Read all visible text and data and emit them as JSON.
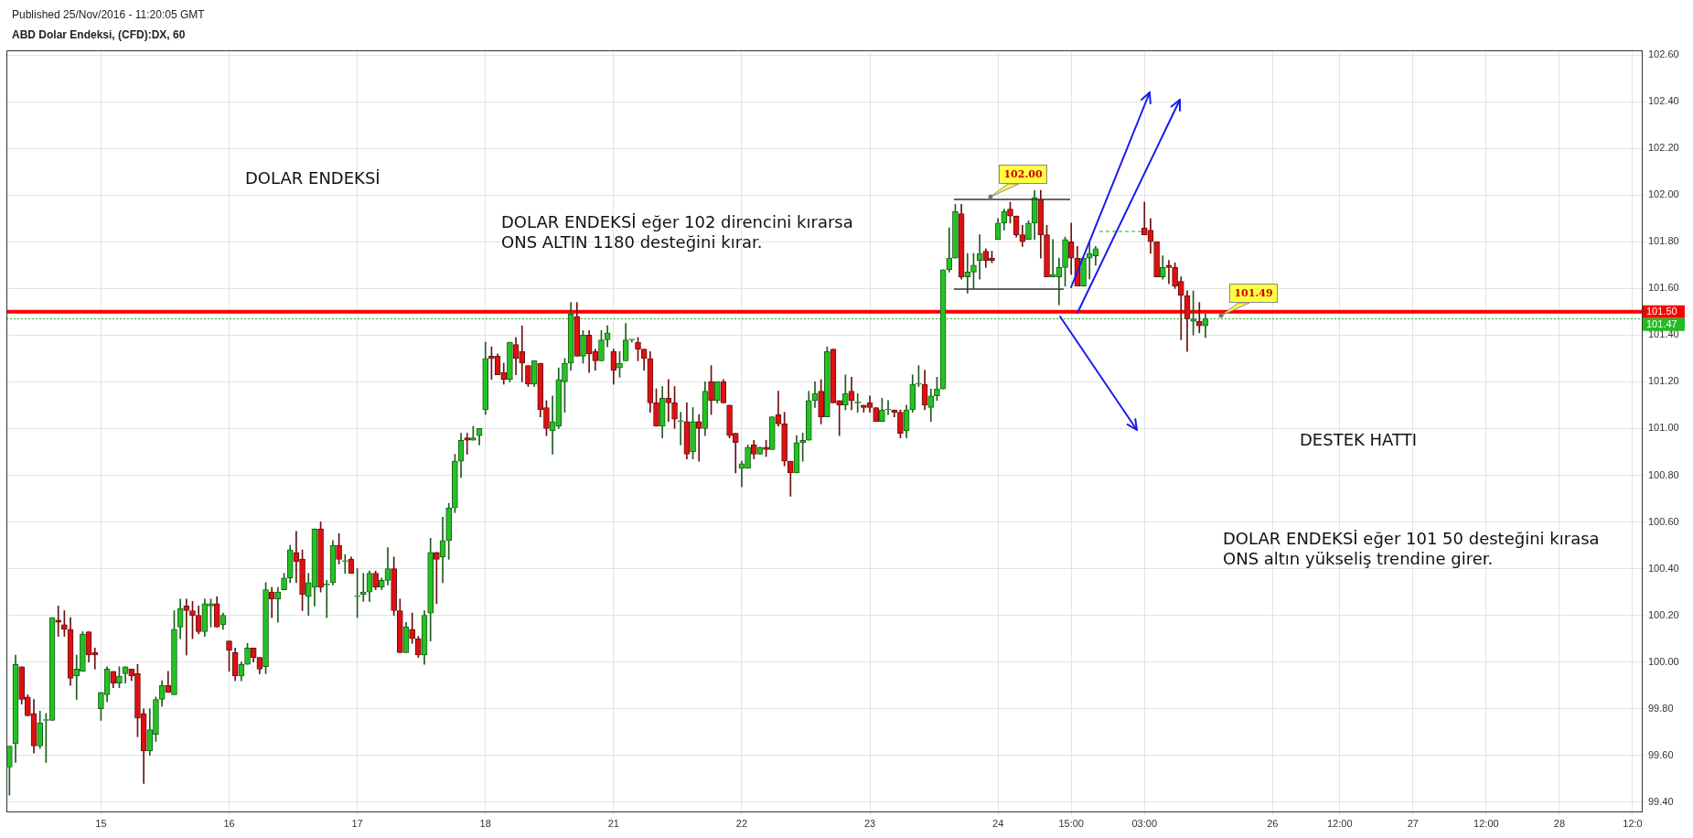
{
  "chart_data": {
    "type": "candlestick",
    "title": "ABD Dolar Endeksi, (CFD):DX, 60",
    "subtitle": "Published 25/Nov/2016 - 11:20:05 GMT",
    "categories": [
      null,
      null,
      null,
      null,
      null,
      null,
      null,
      null,
      null,
      null,
      null,
      null,
      null,
      null,
      null,
      "15",
      null,
      null,
      null,
      null,
      null,
      null,
      null,
      null,
      null,
      null,
      null,
      null,
      null,
      null,
      null,
      null,
      null,
      null,
      null,
      null,
      "16",
      null,
      null,
      null,
      null,
      null,
      null,
      null,
      null,
      null,
      null,
      null,
      null,
      null,
      null,
      null,
      null,
      null,
      null,
      null,
      null,
      "17",
      null,
      null,
      null,
      null,
      null,
      null,
      null,
      null,
      null,
      null,
      null,
      null,
      null,
      null,
      null,
      null,
      null,
      null,
      null,
      null,
      "18",
      null,
      null,
      null,
      null,
      null,
      null,
      null,
      null,
      null,
      null,
      null,
      null,
      null,
      null,
      null,
      null,
      null,
      null,
      null,
      null,
      "21",
      null,
      null,
      null,
      null,
      null,
      null,
      null,
      null,
      null,
      null,
      null,
      null,
      null,
      null,
      null,
      null,
      null,
      null,
      null,
      null,
      "22",
      null,
      null,
      null,
      null,
      null,
      null,
      null,
      null,
      null,
      null,
      null,
      null,
      null,
      null,
      null,
      null,
      null,
      null,
      null,
      null,
      "23",
      null,
      null,
      null,
      null,
      null,
      null,
      null,
      null,
      null,
      null,
      null,
      null,
      null,
      null,
      null,
      null,
      null,
      null,
      null,
      null,
      "24",
      null,
      null,
      null,
      null,
      null,
      null,
      null,
      null,
      null,
      null,
      null,
      "15:00",
      null,
      null,
      null,
      null,
      null,
      null,
      null,
      null,
      null,
      null,
      null,
      "03:00",
      null,
      null,
      null,
      null,
      null,
      null,
      null,
      null,
      null,
      null,
      null,
      null,
      null,
      null,
      null,
      null,
      null,
      null,
      null,
      null,
      "26",
      null,
      null,
      null,
      null,
      null,
      null,
      null,
      null,
      null,
      null,
      "12:00",
      null,
      null,
      null,
      null,
      null,
      null,
      null,
      null,
      null,
      null,
      null,
      "27",
      null,
      null,
      null,
      null,
      null,
      null,
      null,
      null,
      null,
      null,
      null,
      "12:00",
      null,
      null,
      null,
      null,
      null,
      null,
      null,
      null,
      null,
      null,
      null,
      "28",
      null,
      null,
      null,
      null,
      null,
      null,
      null,
      null,
      null,
      null,
      null,
      "12:0",
      null
    ],
    "ohlc": [
      [
        99.55,
        99.64,
        99.43,
        99.64
      ],
      [
        99.65,
        100.03,
        99.57,
        99.99
      ],
      [
        99.98,
        99.98,
        99.82,
        99.84
      ],
      [
        99.85,
        99.86,
        99.77,
        99.77
      ],
      [
        99.78,
        99.84,
        99.61,
        99.64
      ],
      [
        99.64,
        99.79,
        99.63,
        99.74
      ],
      [
        99.75,
        99.78,
        99.57,
        99.75
      ],
      [
        99.75,
        100.19,
        99.75,
        100.19
      ],
      [
        100.18,
        100.24,
        100.11,
        100.17
      ],
      [
        100.16,
        100.22,
        100.11,
        100.14
      ],
      [
        100.14,
        100.19,
        99.9,
        99.93
      ],
      [
        99.94,
        100.03,
        99.84,
        99.97
      ],
      [
        99.96,
        100.13,
        99.96,
        100.12
      ],
      [
        100.13,
        100.13,
        100.0,
        100.03
      ],
      [
        100.04,
        100.06,
        99.97,
        100.03
      ],
      [
        99.8,
        99.87,
        99.75,
        99.87
      ],
      [
        99.86,
        99.98,
        99.83,
        99.97
      ],
      [
        99.96,
        99.96,
        99.89,
        99.91
      ],
      [
        99.91,
        99.98,
        99.89,
        99.94
      ],
      [
        99.95,
        99.98,
        99.91,
        99.98
      ],
      [
        99.97,
        99.97,
        99.92,
        99.94
      ],
      [
        99.95,
        99.99,
        99.68,
        99.76
      ],
      [
        99.78,
        99.8,
        99.48,
        99.62
      ],
      [
        99.62,
        99.8,
        99.6,
        99.71
      ],
      [
        99.69,
        99.85,
        99.66,
        99.84
      ],
      [
        99.84,
        99.92,
        99.81,
        99.9
      ],
      [
        99.9,
        99.96,
        99.87,
        99.87
      ],
      [
        99.86,
        100.22,
        99.86,
        100.14
      ],
      [
        100.15,
        100.27,
        100.1,
        100.23
      ],
      [
        100.24,
        100.27,
        100.03,
        100.22
      ],
      [
        100.22,
        100.26,
        100.1,
        100.2
      ],
      [
        100.2,
        100.24,
        100.12,
        100.13
      ],
      [
        100.13,
        100.27,
        100.11,
        100.25
      ],
      [
        100.24,
        100.27,
        100.15,
        100.25
      ],
      [
        100.25,
        100.28,
        100.15,
        100.15
      ],
      [
        100.16,
        100.21,
        100.14,
        100.2
      ],
      [
        100.09,
        100.09,
        99.96,
        100.05
      ],
      [
        100.04,
        100.06,
        99.92,
        99.94
      ],
      [
        99.94,
        100.0,
        99.92,
        99.99
      ],
      [
        99.99,
        100.08,
        99.99,
        100.06
      ],
      [
        100.06,
        100.06,
        100.0,
        100.02
      ],
      [
        100.02,
        100.02,
        99.95,
        99.97
      ],
      [
        99.98,
        100.34,
        99.95,
        100.31
      ],
      [
        100.3,
        100.32,
        100.19,
        100.27
      ],
      [
        100.27,
        100.32,
        100.17,
        100.3
      ],
      [
        100.31,
        100.38,
        100.31,
        100.36
      ],
      [
        100.36,
        100.5,
        100.34,
        100.48
      ],
      [
        100.47,
        100.56,
        100.34,
        100.43
      ],
      [
        100.44,
        100.48,
        100.22,
        100.29
      ],
      [
        100.28,
        100.38,
        100.2,
        100.34
      ],
      [
        100.32,
        100.57,
        100.24,
        100.57
      ],
      [
        100.57,
        100.6,
        100.3,
        100.32
      ],
      [
        100.33,
        100.35,
        100.19,
        100.33
      ],
      [
        100.34,
        100.52,
        100.33,
        100.5
      ],
      [
        100.5,
        100.55,
        100.42,
        100.44
      ],
      [
        100.43,
        100.46,
        100.38,
        100.43
      ],
      [
        100.44,
        100.45,
        100.38,
        100.38
      ],
      [
        100.28,
        100.4,
        100.19,
        100.28
      ],
      [
        100.29,
        100.38,
        100.26,
        100.3
      ],
      [
        100.3,
        100.39,
        100.26,
        100.38
      ],
      [
        100.38,
        100.39,
        100.31,
        100.32
      ],
      [
        100.32,
        100.36,
        100.31,
        100.35
      ],
      [
        100.35,
        100.49,
        100.33,
        100.4
      ],
      [
        100.4,
        100.45,
        100.2,
        100.22
      ],
      [
        100.22,
        100.27,
        100.04,
        100.04
      ],
      [
        100.04,
        100.17,
        100.04,
        100.15
      ],
      [
        100.14,
        100.21,
        100.08,
        100.1
      ],
      [
        100.1,
        100.11,
        100.02,
        100.03
      ],
      [
        100.03,
        100.22,
        99.99,
        100.2
      ],
      [
        100.21,
        100.53,
        100.09,
        100.47
      ],
      [
        100.47,
        100.47,
        100.25,
        100.44
      ],
      [
        100.45,
        100.62,
        100.34,
        100.52
      ],
      [
        100.52,
        100.68,
        100.44,
        100.66
      ],
      [
        100.66,
        100.89,
        100.64,
        100.86
      ],
      [
        100.86,
        100.98,
        100.79,
        100.95
      ],
      [
        100.96,
        100.98,
        100.89,
        100.95
      ],
      [
        100.95,
        101.01,
        100.95,
        100.96
      ],
      [
        100.97,
        101.0,
        100.93,
        101.0
      ],
      [
        101.08,
        101.37,
        101.06,
        101.3
      ],
      [
        101.31,
        101.35,
        101.21,
        101.3
      ],
      [
        101.31,
        101.32,
        101.23,
        101.23
      ],
      [
        101.24,
        101.28,
        101.19,
        101.21
      ],
      [
        101.21,
        101.37,
        101.2,
        101.37
      ],
      [
        101.36,
        101.39,
        101.23,
        101.3
      ],
      [
        101.33,
        101.44,
        101.2,
        101.28
      ],
      [
        101.27,
        101.27,
        101.18,
        101.19
      ],
      [
        101.19,
        101.29,
        101.18,
        101.29
      ],
      [
        101.28,
        101.28,
        101.05,
        101.08
      ],
      [
        101.09,
        101.12,
        100.97,
        101.0
      ],
      [
        100.99,
        101.14,
        100.89,
        101.03
      ],
      [
        101.01,
        101.26,
        101.0,
        101.21
      ],
      [
        101.2,
        101.3,
        101.07,
        101.28
      ],
      [
        101.28,
        101.54,
        101.25,
        101.49
      ],
      [
        101.48,
        101.54,
        101.31,
        101.31
      ],
      [
        101.31,
        101.42,
        101.28,
        101.4
      ],
      [
        101.4,
        101.42,
        101.24,
        101.32
      ],
      [
        101.33,
        101.34,
        101.25,
        101.29
      ],
      [
        101.29,
        101.42,
        101.29,
        101.38
      ],
      [
        101.38,
        101.44,
        101.35,
        101.41
      ],
      [
        101.33,
        101.34,
        101.19,
        101.25
      ],
      [
        101.26,
        101.33,
        101.22,
        101.28
      ],
      [
        101.29,
        101.45,
        101.29,
        101.38
      ],
      [
        101.38,
        101.38,
        101.37,
        101.38
      ],
      [
        101.37,
        101.39,
        101.29,
        101.34
      ],
      [
        101.34,
        101.34,
        101.25,
        101.3
      ],
      [
        101.3,
        101.33,
        101.07,
        101.11
      ],
      [
        101.11,
        101.17,
        101.01,
        101.01
      ],
      [
        101.01,
        101.18,
        100.96,
        101.13
      ],
      [
        101.13,
        101.21,
        101.03,
        101.11
      ],
      [
        101.11,
        101.18,
        101.0,
        101.04
      ],
      [
        101.03,
        101.07,
        100.93,
        101.03
      ],
      [
        101.03,
        101.11,
        100.87,
        100.89
      ],
      [
        100.9,
        101.09,
        100.87,
        101.03
      ],
      [
        101.03,
        101.06,
        100.86,
        101.0
      ],
      [
        101.0,
        101.2,
        100.97,
        101.16
      ],
      [
        101.2,
        101.27,
        101.06,
        101.12
      ],
      [
        101.12,
        101.2,
        101.11,
        101.2
      ],
      [
        101.2,
        101.21,
        101.11,
        101.11
      ],
      [
        101.1,
        101.1,
        100.96,
        100.97
      ],
      [
        100.98,
        100.98,
        100.81,
        100.94
      ],
      [
        100.83,
        100.86,
        100.75,
        100.85
      ],
      [
        100.83,
        100.93,
        100.83,
        100.92
      ],
      [
        100.93,
        100.95,
        100.87,
        100.89
      ],
      [
        100.89,
        100.92,
        100.89,
        100.92
      ],
      [
        100.92,
        100.95,
        100.88,
        100.91
      ],
      [
        100.91,
        101.05,
        100.91,
        101.05
      ],
      [
        101.06,
        101.16,
        101.01,
        101.02
      ],
      [
        101.02,
        101.07,
        100.84,
        100.86
      ],
      [
        100.86,
        100.86,
        100.71,
        100.81
      ],
      [
        100.81,
        100.97,
        100.81,
        100.94
      ],
      [
        100.94,
        100.98,
        100.86,
        100.95
      ],
      [
        100.95,
        101.16,
        100.95,
        101.12
      ],
      [
        101.12,
        101.2,
        101.09,
        101.15
      ],
      [
        101.16,
        101.21,
        101.02,
        101.05
      ],
      [
        101.05,
        101.35,
        101.05,
        101.33
      ],
      [
        101.34,
        101.34,
        101.11,
        101.11
      ],
      [
        101.12,
        101.12,
        100.97,
        101.1
      ],
      [
        101.1,
        101.23,
        101.08,
        101.15
      ],
      [
        101.16,
        101.22,
        101.08,
        101.12
      ],
      [
        101.11,
        101.15,
        101.07,
        101.11
      ],
      [
        101.1,
        101.1,
        101.07,
        101.09
      ],
      [
        101.11,
        101.14,
        101.07,
        101.09
      ],
      [
        101.09,
        101.09,
        101.03,
        101.03
      ],
      [
        101.03,
        101.13,
        101.03,
        101.08
      ],
      [
        101.08,
        101.12,
        101.06,
        101.08
      ],
      [
        101.08,
        101.08,
        101.05,
        101.07
      ],
      [
        101.07,
        101.08,
        100.96,
        100.98
      ],
      [
        100.99,
        101.1,
        100.96,
        101.08
      ],
      [
        101.08,
        101.23,
        101.07,
        101.19
      ],
      [
        101.19,
        101.27,
        101.18,
        101.19
      ],
      [
        101.19,
        101.25,
        101.08,
        101.1
      ],
      [
        101.09,
        101.17,
        101.03,
        101.14
      ],
      [
        101.14,
        101.22,
        101.12,
        101.17
      ],
      [
        101.17,
        101.68,
        101.17,
        101.68
      ],
      [
        101.68,
        101.86,
        101.67,
        101.73
      ],
      [
        101.73,
        101.96,
        101.73,
        101.93
      ],
      [
        101.92,
        101.96,
        101.64,
        101.65
      ],
      [
        101.65,
        101.75,
        101.58,
        101.67
      ],
      [
        101.67,
        101.75,
        101.6,
        101.7
      ],
      [
        101.72,
        101.83,
        101.64,
        101.75
      ],
      [
        101.76,
        101.77,
        101.69,
        101.72
      ],
      [
        101.73,
        101.76,
        101.71,
        101.72
      ],
      [
        101.81,
        101.9,
        101.81,
        101.88
      ],
      [
        101.88,
        101.94,
        101.85,
        101.93
      ],
      [
        101.94,
        101.97,
        101.88,
        101.91
      ],
      [
        101.91,
        101.91,
        101.82,
        101.83
      ],
      [
        101.83,
        101.87,
        101.78,
        101.8
      ],
      [
        101.81,
        101.89,
        101.81,
        101.88
      ],
      [
        101.88,
        102.02,
        101.81,
        101.99
      ],
      [
        101.98,
        102.02,
        101.73,
        101.83
      ],
      [
        101.83,
        101.87,
        101.65,
        101.65
      ],
      [
        101.65,
        101.81,
        101.65,
        101.66
      ],
      [
        101.65,
        101.73,
        101.53,
        101.69
      ],
      [
        101.69,
        101.82,
        101.61,
        101.81
      ],
      [
        101.8,
        101.88,
        101.66,
        101.73
      ],
      [
        101.73,
        101.78,
        101.61,
        101.61
      ],
      [
        101.61,
        101.73,
        101.61,
        101.73
      ],
      [
        101.73,
        101.8,
        101.64,
        101.75
      ],
      [
        101.74,
        101.78,
        101.7,
        101.77
      ],
      null,
      null,
      null,
      null,
      null,
      null,
      null,
      [
        101.86,
        101.97,
        101.83,
        101.83
      ],
      [
        101.85,
        101.9,
        101.75,
        101.8
      ],
      [
        101.8,
        101.8,
        101.65,
        101.65
      ],
      [
        101.65,
        101.74,
        101.64,
        101.69
      ],
      [
        101.7,
        101.72,
        101.62,
        101.69
      ],
      [
        101.69,
        101.71,
        101.6,
        101.61
      ],
      [
        101.63,
        101.65,
        101.38,
        101.57
      ],
      [
        101.57,
        101.59,
        101.33,
        101.47
      ],
      [
        101.46,
        101.59,
        101.4,
        101.47
      ],
      [
        101.46,
        101.54,
        101.41,
        101.44
      ],
      [
        101.44,
        101.49,
        101.39,
        101.47
      ],
      null,
      null,
      null,
      null,
      null,
      null,
      null,
      null,
      null,
      null,
      null,
      null,
      null,
      null,
      null,
      null,
      null,
      null,
      null,
      null,
      null,
      null,
      null,
      null,
      null,
      null,
      null,
      null,
      null,
      null,
      null,
      null,
      null,
      null,
      null,
      null,
      null,
      null,
      null,
      null,
      null,
      null,
      null,
      null,
      null,
      null,
      null,
      null,
      null,
      null,
      null,
      null,
      null,
      null,
      null,
      null,
      null,
      null,
      null,
      null,
      null,
      null,
      null,
      null,
      null,
      null,
      null,
      null,
      null,
      null,
      null
    ],
    "ylim": [
      99.36,
      102.62
    ],
    "yticks": [
      {
        "value": 99.4,
        "label": "99.40"
      },
      {
        "value": 99.6,
        "label": "99.60"
      },
      {
        "value": 99.8,
        "label": "99.80"
      },
      {
        "value": 100.0,
        "label": "100.00"
      },
      {
        "value": 100.2,
        "label": "100.20"
      },
      {
        "value": 100.4,
        "label": "100.40"
      },
      {
        "value": 100.6,
        "label": "100.60"
      },
      {
        "value": 100.8,
        "label": "100.80"
      },
      {
        "value": 101.0,
        "label": "101.00"
      },
      {
        "value": 101.2,
        "label": "101.20"
      },
      {
        "value": 101.4,
        "label": "101.40"
      },
      {
        "value": 101.6,
        "label": "101.60"
      },
      {
        "value": 101.8,
        "label": "101.80"
      },
      {
        "value": 102.0,
        "label": "102.00"
      },
      {
        "value": 102.2,
        "label": "102.20"
      },
      {
        "value": 102.4,
        "label": "102.40"
      },
      {
        "value": 102.6,
        "label": "102.60"
      }
    ],
    "ref_lines": [
      {
        "axis": "y",
        "value": 101.5,
        "label": "101.50",
        "color": "#ff0000"
      },
      {
        "axis": "y",
        "value": 101.47,
        "label": "101.47",
        "color": "#22bb22",
        "line_style": "dotted"
      }
    ],
    "annotations": [
      "DOLAR ENDEKSİ",
      "DOLAR ENDEKSİ eğer 102 direncini kırarsa ONS ALTIN 1180 desteğini kırar.",
      "DESTEK HATTI",
      "DOLAR ENDEKSİ eğer 101 50 desteğini kırasa ONS altın yükseliş trendine girer.",
      "102.00",
      "101.49"
    ],
    "grid": true,
    "legend": false
  }
}
